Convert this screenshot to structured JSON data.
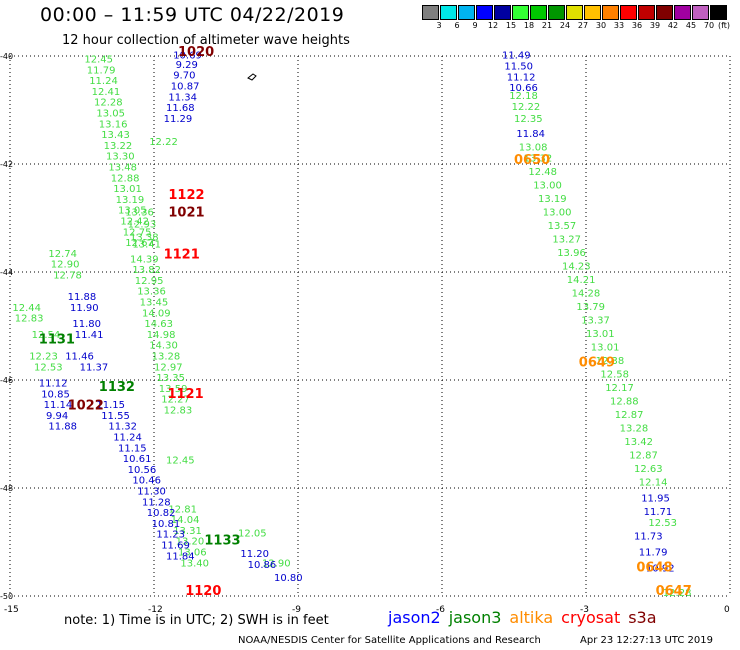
{
  "header": {
    "title": "00:00 – 11:59 UTC 04/22/2019",
    "subtitle": "12 hour collection of altimeter wave heights"
  },
  "color_scale": {
    "unit": "(ft)",
    "bins": [
      {
        "label": "",
        "color": "#7f7f7f"
      },
      {
        "label": "3",
        "color": "#00e8e8"
      },
      {
        "label": "6",
        "color": "#00b4f0"
      },
      {
        "label": "9",
        "color": "#0000ff"
      },
      {
        "label": "12",
        "color": "#0000a0"
      },
      {
        "label": "15",
        "color": "#33ff33"
      },
      {
        "label": "18",
        "color": "#00c800"
      },
      {
        "label": "21",
        "color": "#009600"
      },
      {
        "label": "24",
        "color": "#e0e000"
      },
      {
        "label": "27",
        "color": "#ffc000"
      },
      {
        "label": "30",
        "color": "#ff8000"
      },
      {
        "label": "33",
        "color": "#ff0000"
      },
      {
        "label": "36",
        "color": "#c00000"
      },
      {
        "label": "39",
        "color": "#800000"
      },
      {
        "label": "42",
        "color": "#a000a0"
      },
      {
        "label": "45",
        "color": "#c060c0"
      },
      {
        "label": "70",
        "color": "#000000"
      }
    ]
  },
  "axes": {
    "lat_labels": [
      "-40",
      "-42",
      "-44",
      "-46",
      "-48",
      "-50"
    ],
    "lon_labels": [
      "-15",
      "-12",
      "-9",
      "-6",
      "-3",
      "0"
    ]
  },
  "time_labels": [
    {
      "text": "1020",
      "color": "#800000",
      "lon": -11.5,
      "lat": -40.0
    },
    {
      "text": "1122",
      "color": "#ff0000",
      "lon": -11.7,
      "lat": -42.65
    },
    {
      "text": "1021",
      "color": "#800000",
      "lon": -11.7,
      "lat": -42.97
    },
    {
      "text": "1121",
      "color": "#ff0000",
      "lon": -11.8,
      "lat": -43.75
    },
    {
      "text": "1131",
      "color": "#008000",
      "lon": -14.4,
      "lat": -45.32
    },
    {
      "text": "1132",
      "color": "#008000",
      "lon": -13.15,
      "lat": -46.2
    },
    {
      "text": "1121",
      "color": "#ff0000",
      "lon": -11.72,
      "lat": -46.33
    },
    {
      "text": "1022",
      "color": "#800000",
      "lon": -13.8,
      "lat": -46.55
    },
    {
      "text": "1133",
      "color": "#008000",
      "lon": -10.95,
      "lat": -49.05
    },
    {
      "text": "1120",
      "color": "#ff0000",
      "lon": -11.35,
      "lat": -49.98
    },
    {
      "text": "0650",
      "color": "#ff8c00",
      "lon": -4.5,
      "lat": -42.0
    },
    {
      "text": "0649",
      "color": "#ff8c00",
      "lon": -3.15,
      "lat": -45.75
    },
    {
      "text": "0648",
      "color": "#ff8c00",
      "lon": -1.95,
      "lat": -49.55
    },
    {
      "text": "0647",
      "color": "#ff8c00",
      "lon": -1.55,
      "lat": -49.98
    }
  ],
  "wave_tracks": [
    {
      "name": "jason3 east track",
      "color": "#44dd44",
      "points": [
        {
          "v": "12.45",
          "lon": -13.45,
          "lat": -40.12
        },
        {
          "v": "11.79",
          "lon": -13.4,
          "lat": -40.32
        },
        {
          "v": "11.24",
          "lon": -13.35,
          "lat": -40.52
        },
        {
          "v": "12.41",
          "lon": -13.3,
          "lat": -40.72
        },
        {
          "v": "12.28",
          "lon": -13.25,
          "lat": -40.92
        },
        {
          "v": "13.05",
          "lon": -13.2,
          "lat": -41.12
        },
        {
          "v": "13.16",
          "lon": -13.15,
          "lat": -41.32
        },
        {
          "v": "13.43",
          "lon": -13.1,
          "lat": -41.52
        },
        {
          "v": "13.22",
          "lon": -13.05,
          "lat": -41.72
        },
        {
          "v": "13.30",
          "lon": -13.0,
          "lat": -41.92
        },
        {
          "v": "13.48",
          "lon": -12.95,
          "lat": -42.12
        },
        {
          "v": "12.88",
          "lon": -12.9,
          "lat": -42.32
        },
        {
          "v": "13.01",
          "lon": -12.85,
          "lat": -42.52
        },
        {
          "v": "13.19",
          "lon": -12.8,
          "lat": -42.72
        },
        {
          "v": "13.05",
          "lon": -12.75,
          "lat": -42.92
        },
        {
          "v": "12.42",
          "lon": -12.7,
          "lat": -43.12
        },
        {
          "v": "12.75",
          "lon": -12.65,
          "lat": -43.32
        },
        {
          "v": "12.67",
          "lon": -12.6,
          "lat": -43.52
        },
        {
          "v": "12.74",
          "lon": -14.2,
          "lat": -43.72
        },
        {
          "v": "12.90",
          "lon": -14.15,
          "lat": -43.92
        },
        {
          "v": "12.78",
          "lon": -14.1,
          "lat": -44.12
        },
        {
          "v": "12.44",
          "lon": -14.95,
          "lat": -44.72
        },
        {
          "v": "12.83",
          "lon": -14.9,
          "lat": -44.92
        },
        {
          "v": "12.54",
          "lon": -14.55,
          "lat": -45.22
        },
        {
          "v": "12.23",
          "lon": -14.6,
          "lat": -45.62
        },
        {
          "v": "12.53",
          "lon": -14.5,
          "lat": -45.82
        },
        {
          "v": "12.22",
          "lon": -12.1,
          "lat": -41.65
        },
        {
          "v": "13.36",
          "lon": -12.6,
          "lat": -42.95
        },
        {
          "v": "12.93",
          "lon": -12.55,
          "lat": -43.18
        },
        {
          "v": "13.38",
          "lon": -12.5,
          "lat": -43.42
        },
        {
          "v": "13.41",
          "lon": -12.45,
          "lat": -43.55
        },
        {
          "v": "14.39",
          "lon": -12.5,
          "lat": -43.82
        },
        {
          "v": "13.82",
          "lon": -12.45,
          "lat": -44.02
        },
        {
          "v": "12.95",
          "lon": -12.4,
          "lat": -44.22
        },
        {
          "v": "13.36",
          "lon": -12.35,
          "lat": -44.42
        },
        {
          "v": "13.45",
          "lon": -12.3,
          "lat": -44.62
        },
        {
          "v": "14.09",
          "lon": -12.25,
          "lat": -44.82
        },
        {
          "v": "14.63",
          "lon": -12.2,
          "lat": -45.02
        },
        {
          "v": "14.98",
          "lon": -12.15,
          "lat": -45.22
        },
        {
          "v": "14.30",
          "lon": -12.1,
          "lat": -45.42
        },
        {
          "v": "13.28",
          "lon": -12.05,
          "lat": -45.62
        },
        {
          "v": "12.97",
          "lon": -12.0,
          "lat": -45.82
        },
        {
          "v": "13.35",
          "lon": -11.95,
          "lat": -46.02
        },
        {
          "v": "13.59",
          "lon": -11.9,
          "lat": -46.22
        },
        {
          "v": "12.27",
          "lon": -11.85,
          "lat": -46.42
        },
        {
          "v": "12.83",
          "lon": -11.8,
          "lat": -46.62
        },
        {
          "v": "12.45",
          "lon": -11.75,
          "lat": -47.55
        },
        {
          "v": "12.81",
          "lon": -11.7,
          "lat": -48.45
        },
        {
          "v": "14.04",
          "lon": -11.65,
          "lat": -48.65
        },
        {
          "v": "13.31",
          "lon": -11.6,
          "lat": -48.85
        },
        {
          "v": "13.20",
          "lon": -11.55,
          "lat": -49.05
        },
        {
          "v": "13.06",
          "lon": -11.5,
          "lat": -49.25
        },
        {
          "v": "13.40",
          "lon": -11.45,
          "lat": -49.45
        },
        {
          "v": "12.05",
          "lon": -10.25,
          "lat": -48.9
        },
        {
          "v": "12.90",
          "lon": -9.75,
          "lat": -49.45
        }
      ]
    },
    {
      "name": "jason2 west track",
      "color": "#0000cc",
      "points": [
        {
          "v": "10.69",
          "lon": -11.6,
          "lat": -40.05
        },
        {
          "v": "9.29",
          "lon": -11.55,
          "lat": -40.22
        },
        {
          "v": "9.70",
          "lon": -11.6,
          "lat": -40.42
        },
        {
          "v": "10.87",
          "lon": -11.65,
          "lat": -40.62
        },
        {
          "v": "11.34",
          "lon": -11.7,
          "lat": -40.82
        },
        {
          "v": "11.68",
          "lon": -11.75,
          "lat": -41.02
        },
        {
          "v": "11.29",
          "lon": -11.8,
          "lat": -41.22
        },
        {
          "v": "11.88",
          "lon": -13.8,
          "lat": -44.52
        },
        {
          "v": "11.90",
          "lon": -13.75,
          "lat": -44.72
        },
        {
          "v": "11.80",
          "lon": -13.7,
          "lat": -45.02
        },
        {
          "v": "11.41",
          "lon": -13.65,
          "lat": -45.22
        },
        {
          "v": "11.46",
          "lon": -13.85,
          "lat": -45.62
        },
        {
          "v": "11.37",
          "lon": -13.55,
          "lat": -45.82
        },
        {
          "v": "11.12",
          "lon": -14.4,
          "lat": -46.12
        },
        {
          "v": "10.85",
          "lon": -14.35,
          "lat": -46.32
        },
        {
          "v": "11.14",
          "lon": -14.3,
          "lat": -46.52
        },
        {
          "v": "9.94",
          "lon": -14.25,
          "lat": -46.72
        },
        {
          "v": "11.88",
          "lon": -14.2,
          "lat": -46.92
        },
        {
          "v": "11.15",
          "lon": -13.2,
          "lat": -46.52
        },
        {
          "v": "11.55",
          "lon": -13.1,
          "lat": -46.72
        },
        {
          "v": "11.32",
          "lon": -12.95,
          "lat": -46.92
        },
        {
          "v": "11.24",
          "lon": -12.85,
          "lat": -47.12
        },
        {
          "v": "11.15",
          "lon": -12.75,
          "lat": -47.32
        },
        {
          "v": "10.61",
          "lon": -12.65,
          "lat": -47.52
        },
        {
          "v": "10.56",
          "lon": -12.55,
          "lat": -47.72
        },
        {
          "v": "10.46",
          "lon": -12.45,
          "lat": -47.92
        },
        {
          "v": "11.30",
          "lon": -12.35,
          "lat": -48.12
        },
        {
          "v": "11.28",
          "lon": -12.25,
          "lat": -48.32
        },
        {
          "v": "10.82",
          "lon": -12.15,
          "lat": -48.52
        },
        {
          "v": "10.81",
          "lon": -12.05,
          "lat": -48.72
        },
        {
          "v": "11.23",
          "lon": -11.95,
          "lat": -48.92
        },
        {
          "v": "11.69",
          "lon": -11.85,
          "lat": -49.12
        },
        {
          "v": "11.84",
          "lon": -11.75,
          "lat": -49.32
        },
        {
          "v": "11.20",
          "lon": -10.2,
          "lat": -49.28
        },
        {
          "v": "10.86",
          "lon": -10.05,
          "lat": -49.48
        },
        {
          "v": "10.80",
          "lon": -9.5,
          "lat": -49.72
        }
      ]
    },
    {
      "name": "altika east track",
      "color": "#44dd44",
      "points": [
        {
          "v": "12.18",
          "lon": -4.6,
          "lat": -40.8
        },
        {
          "v": "12.22",
          "lon": -4.55,
          "lat": -41.0
        },
        {
          "v": "12.35",
          "lon": -4.5,
          "lat": -41.22
        },
        {
          "v": "13.08",
          "lon": -4.4,
          "lat": -41.75
        },
        {
          "v": "13.32",
          "lon": -4.3,
          "lat": -41.95
        },
        {
          "v": "12.48",
          "lon": -4.2,
          "lat": -42.2
        },
        {
          "v": "13.00",
          "lon": -4.1,
          "lat": -42.45
        },
        {
          "v": "13.19",
          "lon": -4.0,
          "lat": -42.7
        },
        {
          "v": "13.00",
          "lon": -3.9,
          "lat": -42.95
        },
        {
          "v": "13.57",
          "lon": -3.8,
          "lat": -43.2
        },
        {
          "v": "13.27",
          "lon": -3.7,
          "lat": -43.45
        },
        {
          "v": "13.96",
          "lon": -3.6,
          "lat": -43.7
        },
        {
          "v": "14.23",
          "lon": -3.5,
          "lat": -43.95
        },
        {
          "v": "14.21",
          "lon": -3.4,
          "lat": -44.2
        },
        {
          "v": "14.28",
          "lon": -3.3,
          "lat": -44.45
        },
        {
          "v": "13.79",
          "lon": -3.2,
          "lat": -44.7
        },
        {
          "v": "13.37",
          "lon": -3.1,
          "lat": -44.95
        },
        {
          "v": "13.01",
          "lon": -3.0,
          "lat": -45.2
        },
        {
          "v": "13.01",
          "lon": -2.9,
          "lat": -45.45
        },
        {
          "v": "12.38",
          "lon": -2.8,
          "lat": -45.7
        },
        {
          "v": "12.58",
          "lon": -2.7,
          "lat": -45.95
        },
        {
          "v": "12.17",
          "lon": -2.6,
          "lat": -46.2
        },
        {
          "v": "12.88",
          "lon": -2.5,
          "lat": -46.45
        },
        {
          "v": "12.87",
          "lon": -2.4,
          "lat": -46.7
        },
        {
          "v": "13.28",
          "lon": -2.3,
          "lat": -46.95
        },
        {
          "v": "13.42",
          "lon": -2.2,
          "lat": -47.2
        },
        {
          "v": "12.87",
          "lon": -2.1,
          "lat": -47.45
        },
        {
          "v": "12.63",
          "lon": -2.0,
          "lat": -47.7
        },
        {
          "v": "12.14",
          "lon": -1.9,
          "lat": -47.95
        },
        {
          "v": "12.53",
          "lon": -1.7,
          "lat": -48.7
        },
        {
          "v": "12.28",
          "lon": -1.4,
          "lat": -50.0
        }
      ]
    },
    {
      "name": "altika east blue",
      "color": "#0000cc",
      "points": [
        {
          "v": "11.49",
          "lon": -4.75,
          "lat": -40.05
        },
        {
          "v": "11.50",
          "lon": -4.7,
          "lat": -40.25
        },
        {
          "v": "11.12",
          "lon": -4.65,
          "lat": -40.45
        },
        {
          "v": "10.66",
          "lon": -4.6,
          "lat": -40.65
        },
        {
          "v": "11.84",
          "lon": -4.45,
          "lat": -41.5
        },
        {
          "v": "11.95",
          "lon": -1.85,
          "lat": -48.25
        },
        {
          "v": "11.71",
          "lon": -1.8,
          "lat": -48.5
        },
        {
          "v": "11.73",
          "lon": -2.0,
          "lat": -48.95
        },
        {
          "v": "11.79",
          "lon": -1.9,
          "lat": -49.25
        },
        {
          "v": "10.92",
          "lon": -1.75,
          "lat": -49.55
        }
      ]
    }
  ],
  "note": "note:  1) Time is in UTC;  2) SWH is in feet",
  "legend": [
    {
      "label": "jason2",
      "color": "#0000ff"
    },
    {
      "label": "jason3",
      "color": "#008000"
    },
    {
      "label": "altika",
      "color": "#ff8c00"
    },
    {
      "label": "cryosat",
      "color": "#ff0000"
    },
    {
      "label": "s3a",
      "color": "#800000"
    }
  ],
  "footer": {
    "credit": "NOAA/NESDIS Center for Satellite Applications and Research",
    "timestamp": "Apr 23 12:27:13 UTC 2019"
  }
}
